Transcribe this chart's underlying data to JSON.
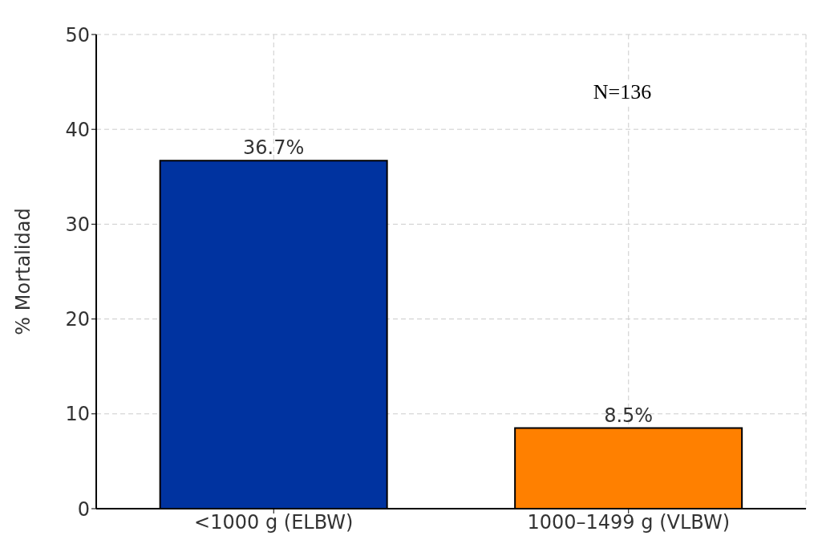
{
  "chart_data": {
    "type": "bar",
    "ylabel": "% Mortalidad",
    "categories": [
      "<1000 g (ELBW)",
      "1000–1499 g (VLBW)"
    ],
    "values": [
      36.7,
      8.5
    ],
    "colors": [
      "#0033a0",
      "#ff8000"
    ],
    "value_labels": [
      "36.7%",
      "8.5%"
    ],
    "ylim": [
      0,
      50
    ],
    "yticks": [
      0,
      10,
      20,
      30,
      40,
      50
    ],
    "grid": true,
    "annotations": [
      "N=136"
    ]
  }
}
